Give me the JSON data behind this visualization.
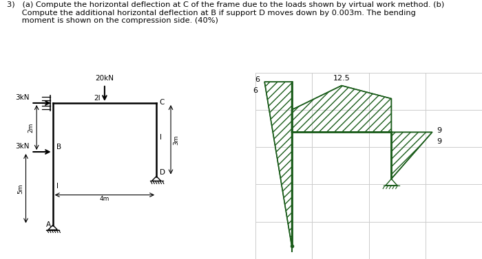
{
  "bg_color": "#ffffff",
  "frame_color": "#000000",
  "diagram_color": "#1a5c1a",
  "grid_color": "#cccccc",
  "text_line1": "3)   (a) Compute the horizontal deflection at C of the frame due to the loads shown by virtual work method. (b)",
  "text_line2": "      Compute the additional horizontal deflection at B if support D moves down by 0.003m. The bending",
  "text_line3": "      moment is shown on the compression side. (40%)",
  "bmd_label_125": "12.5",
  "bmd_label_6_left": "6",
  "bmd_label_9_top": "9",
  "bmd_label_6_mid": "6",
  "bmd_label_9_bot": "9",
  "frame_labels": {
    "20kN": "20kN",
    "3kN_top": "3kN",
    "3kN_mid": "3kN",
    "B": "B",
    "2I": "2I",
    "C": "C",
    "I_right": "I",
    "I_left": "I",
    "D": "D",
    "A": "A",
    "2m": "2m",
    "3m": "3m",
    "5m": "5m",
    "4m": "4m"
  }
}
